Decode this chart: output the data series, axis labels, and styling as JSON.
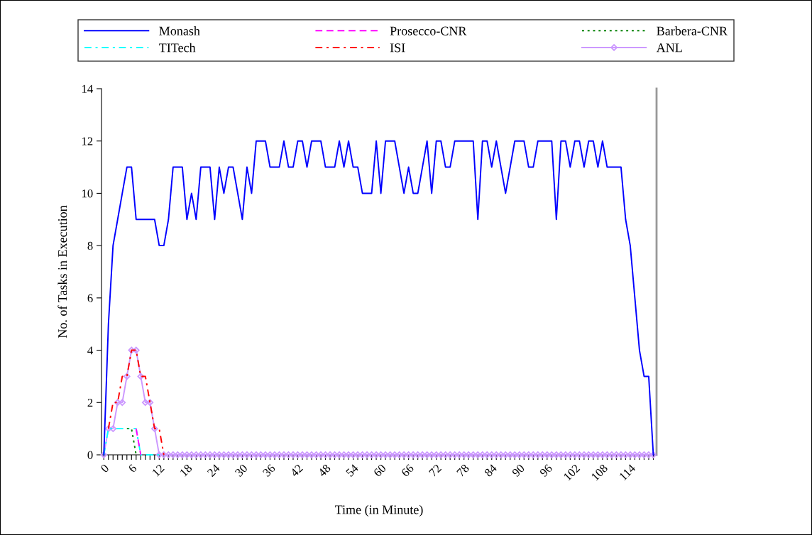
{
  "chart_data": {
    "type": "line",
    "xlabel": "Time (in Minute)",
    "ylabel": "No. of Tasks in Execution",
    "categories": [
      "0",
      null,
      null,
      null,
      null,
      null,
      "6",
      null,
      null,
      null,
      null,
      null,
      "12",
      null,
      null,
      null,
      null,
      null,
      "18",
      null,
      null,
      null,
      null,
      null,
      "24",
      null,
      null,
      null,
      null,
      null,
      "30",
      null,
      null,
      null,
      null,
      null,
      "36",
      null,
      null,
      null,
      null,
      null,
      "42",
      null,
      null,
      null,
      null,
      null,
      "48",
      null,
      null,
      null,
      null,
      null,
      "54",
      null,
      null,
      null,
      null,
      null,
      "60",
      null,
      null,
      null,
      null,
      null,
      "66",
      null,
      null,
      null,
      null,
      null,
      "72",
      null,
      null,
      null,
      null,
      null,
      "78",
      null,
      null,
      null,
      null,
      null,
      "84",
      null,
      null,
      null,
      null,
      null,
      "90",
      null,
      null,
      null,
      null,
      null,
      "96",
      null,
      null,
      null,
      null,
      null,
      "102",
      null,
      null,
      null,
      null,
      null,
      "108",
      null,
      null,
      null,
      null,
      null,
      "114",
      null,
      null,
      null,
      null,
      null
    ],
    "ylim": [
      0,
      14
    ],
    "yticks": [
      0,
      2,
      4,
      6,
      8,
      10,
      12,
      14
    ],
    "grid": false,
    "legend": "top",
    "series": [
      {
        "name": "Monash",
        "color": "#0000ff",
        "line_style": "solid",
        "marker": "none",
        "values": [
          0,
          5,
          8,
          9,
          10,
          11,
          11,
          9,
          9,
          9,
          9,
          9,
          8,
          8,
          9,
          11,
          11,
          11,
          9,
          10,
          9,
          11,
          11,
          11,
          9,
          11,
          10,
          11,
          11,
          10,
          9,
          11,
          10,
          12,
          12,
          12,
          11,
          11,
          11,
          12,
          11,
          11,
          12,
          12,
          11,
          12,
          12,
          12,
          11,
          11,
          11,
          12,
          11,
          12,
          11,
          11,
          10,
          10,
          10,
          12,
          10,
          12,
          12,
          12,
          11,
          10,
          11,
          10,
          10,
          11,
          12,
          10,
          12,
          12,
          11,
          11,
          12,
          12,
          12,
          12,
          12,
          9,
          12,
          12,
          11,
          12,
          11,
          10,
          11,
          12,
          12,
          12,
          11,
          11,
          12,
          12,
          12,
          12,
          9,
          12,
          12,
          11,
          12,
          12,
          11,
          12,
          12,
          11,
          12,
          11,
          11,
          11,
          11,
          9,
          8,
          6,
          4,
          3,
          3,
          0
        ]
      },
      {
        "name": "Prosecco-CNR",
        "color": "#ff00ff",
        "line_style": "dashed",
        "marker": "none",
        "values": [
          null,
          null,
          null,
          null,
          null,
          null,
          null,
          1,
          0,
          null,
          null,
          null,
          null,
          null,
          null,
          null,
          null,
          null,
          null,
          null,
          null,
          null,
          null,
          null,
          null,
          null,
          null,
          null,
          null,
          null,
          null,
          null,
          null,
          null,
          null,
          null,
          null,
          null,
          null,
          null,
          null,
          null,
          null,
          null,
          null,
          null,
          null,
          null,
          null,
          null,
          null,
          null,
          null,
          null,
          null,
          null,
          null,
          null,
          null,
          null,
          null,
          null,
          null,
          null,
          null,
          null,
          null,
          null,
          null,
          null,
          null,
          null,
          null,
          null,
          null,
          null,
          null,
          null,
          null,
          null,
          null,
          null,
          null,
          null,
          null,
          null,
          null,
          null,
          null,
          null,
          null,
          null,
          null,
          null,
          null,
          null,
          null,
          null,
          null,
          null,
          null,
          null,
          null,
          null,
          null,
          null,
          null,
          null,
          null,
          null,
          null,
          null,
          null,
          null,
          null,
          null,
          null,
          null,
          null,
          null
        ]
      },
      {
        "name": "Barbera-CNR",
        "color": "#008000",
        "line_style": "dotted",
        "marker": "none",
        "values": [
          null,
          null,
          null,
          null,
          null,
          1,
          1,
          0,
          null,
          null,
          null,
          null,
          null,
          null,
          null,
          null,
          null,
          null,
          null,
          null,
          null,
          null,
          null,
          null,
          null,
          null,
          null,
          null,
          null,
          null,
          null,
          null,
          null,
          null,
          null,
          null,
          null,
          null,
          null,
          null,
          null,
          null,
          null,
          null,
          null,
          null,
          null,
          null,
          null,
          null,
          null,
          null,
          null,
          null,
          null,
          null,
          null,
          null,
          null,
          null,
          null,
          null,
          null,
          null,
          null,
          null,
          null,
          null,
          null,
          null,
          null,
          null,
          null,
          null,
          null,
          null,
          null,
          null,
          null,
          null,
          null,
          null,
          null,
          null,
          null,
          null,
          null,
          null,
          null,
          null,
          null,
          null,
          null,
          null,
          null,
          null,
          null,
          null,
          null,
          null,
          null,
          null,
          null,
          null,
          null,
          null,
          null,
          null,
          null,
          null,
          null,
          null,
          null,
          null,
          null,
          null,
          null,
          null,
          null,
          null
        ]
      },
      {
        "name": "TITech",
        "color": "#00ffff",
        "line_style": "dashdot",
        "marker": "none",
        "values": [
          0,
          1,
          1,
          1,
          1,
          1,
          1,
          1,
          0,
          0,
          0,
          0,
          0,
          null,
          null,
          null,
          null,
          null,
          null,
          null,
          null,
          null,
          null,
          null,
          null,
          null,
          null,
          null,
          null,
          null,
          null,
          null,
          null,
          null,
          null,
          null,
          null,
          null,
          null,
          null,
          null,
          null,
          null,
          null,
          null,
          null,
          null,
          null,
          null,
          null,
          null,
          null,
          null,
          null,
          null,
          null,
          null,
          null,
          null,
          null,
          null,
          null,
          null,
          null,
          null,
          null,
          null,
          null,
          null,
          null,
          null,
          null,
          null,
          null,
          null,
          null,
          null,
          null,
          null,
          null,
          null,
          null,
          null,
          null,
          null,
          null,
          null,
          null,
          null,
          null,
          null,
          null,
          null,
          null,
          null,
          null,
          null,
          null,
          null,
          null,
          null,
          null,
          null,
          null,
          null,
          null,
          null,
          null,
          null,
          null,
          null,
          null,
          null,
          null,
          null,
          null,
          null,
          null,
          null,
          null
        ]
      },
      {
        "name": "ISI",
        "color": "#ff0000",
        "line_style": "dashdot",
        "marker": "none",
        "values": [
          null,
          1,
          2,
          2,
          3,
          3,
          4,
          4,
          3,
          3,
          2,
          1,
          1,
          0,
          null,
          null,
          null,
          null,
          null,
          null,
          null,
          null,
          null,
          null,
          null,
          null,
          null,
          null,
          null,
          null,
          null,
          null,
          null,
          null,
          null,
          null,
          null,
          null,
          null,
          null,
          null,
          null,
          null,
          null,
          null,
          null,
          null,
          null,
          null,
          null,
          null,
          null,
          null,
          null,
          null,
          null,
          null,
          null,
          null,
          null,
          null,
          null,
          null,
          null,
          null,
          null,
          null,
          null,
          null,
          null,
          null,
          null,
          null,
          null,
          null,
          null,
          null,
          null,
          null,
          null,
          null,
          null,
          null,
          null,
          null,
          null,
          null,
          null,
          null,
          null,
          null,
          null,
          null,
          null,
          null,
          null,
          null,
          null,
          null,
          null,
          null,
          null,
          null,
          null,
          null,
          null,
          null,
          null,
          null,
          null,
          null,
          null,
          null,
          null,
          null,
          null,
          null,
          null,
          null,
          null
        ]
      },
      {
        "name": "ANL",
        "color": "#cc99ff",
        "line_style": "solid",
        "marker": "diamond",
        "values": [
          0,
          1,
          1,
          2,
          2,
          3,
          4,
          4,
          3,
          2,
          2,
          1,
          0,
          0,
          0,
          0,
          0,
          0,
          0,
          0,
          0,
          0,
          0,
          0,
          0,
          0,
          0,
          0,
          0,
          0,
          0,
          0,
          0,
          0,
          0,
          0,
          0,
          0,
          0,
          0,
          0,
          0,
          0,
          0,
          0,
          0,
          0,
          0,
          0,
          0,
          0,
          0,
          0,
          0,
          0,
          0,
          0,
          0,
          0,
          0,
          0,
          0,
          0,
          0,
          0,
          0,
          0,
          0,
          0,
          0,
          0,
          0,
          0,
          0,
          0,
          0,
          0,
          0,
          0,
          0,
          0,
          0,
          0,
          0,
          0,
          0,
          0,
          0,
          0,
          0,
          0,
          0,
          0,
          0,
          0,
          0,
          0,
          0,
          0,
          0,
          0,
          0,
          0,
          0,
          0,
          0,
          0,
          0,
          0,
          0,
          0,
          0,
          0,
          0,
          0,
          0,
          0,
          0,
          0,
          0
        ]
      }
    ]
  }
}
